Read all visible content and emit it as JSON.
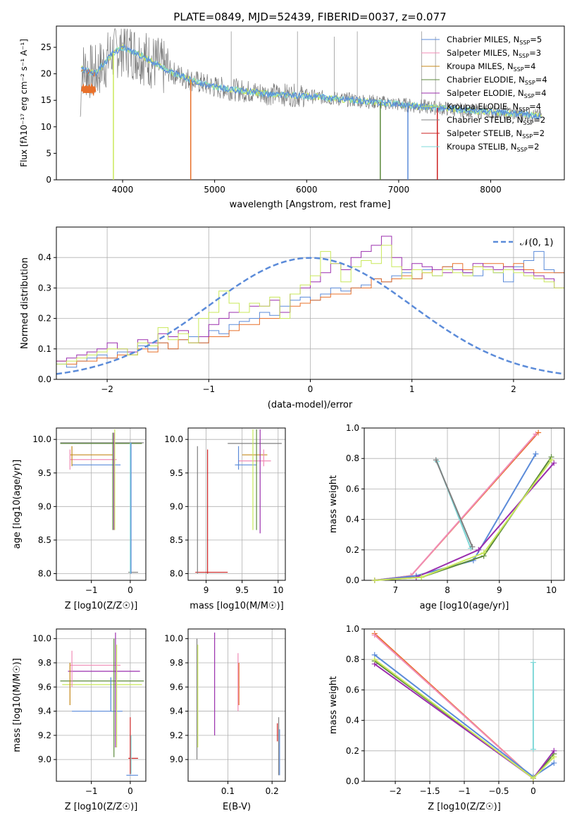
{
  "colors": {
    "c_miles": "#5b8bd9",
    "s_miles": "#f08cb7",
    "k_miles": "#c58a1b",
    "c_elodie": "#5c8a3c",
    "s_elodie": "#9b2fae",
    "k_elodie": "#c9e85a",
    "c_stelib": "#808080",
    "s_stelib": "#cc2222",
    "k_stelib": "#7fd8d8",
    "orange": "#e8702a",
    "gauss": "#5b8bd9",
    "grid": "#b0b0b0"
  },
  "chart_data": [
    {
      "type": "line",
      "title": "PLATE=0849, MJD=52439, FIBERID=0037, z=0.077",
      "xlabel": "wavelength [Angstrom, rest frame]",
      "ylabel": "Flux [fλ10⁻¹⁷ erg cm⁻² s⁻¹ A⁻¹]",
      "xlim": [
        3280,
        8800
      ],
      "ylim": [
        0,
        29
      ],
      "xticks": [
        4000,
        5000,
        6000,
        7000,
        8000
      ],
      "yticks": [
        0,
        5,
        10,
        15,
        20,
        25
      ],
      "grid": false,
      "legend_position": "top-right",
      "series": [
        {
          "name": "Chabrier MILES, N_SSP=5",
          "color": "#5b8bd9"
        },
        {
          "name": "Salpeter MILES, N_SSP=3",
          "color": "#f08cb7"
        },
        {
          "name": "Kroupa MILES, N_SSP=4",
          "color": "#c58a1b"
        },
        {
          "name": "Chabrier ELODIE, N_SSP=4",
          "color": "#5c8a3c"
        },
        {
          "name": "Salpeter ELODIE, N_SSP=4",
          "color": "#9b2fae"
        },
        {
          "name": "Kroupa ELODIE, N_SSP=4",
          "color": "#c9e85a"
        },
        {
          "name": "Chabrier STELIB, N_SSP=2",
          "color": "#808080"
        },
        {
          "name": "Salpeter STELIB, N_SSP=2",
          "color": "#cc2222"
        },
        {
          "name": "Kroupa STELIB, N_SSP=2",
          "color": "#7fd8d8"
        }
      ],
      "continuum": {
        "x": [
          3550,
          3700,
          3800,
          3900,
          4000,
          4200,
          4500,
          4800,
          5000,
          5300,
          5600,
          6000,
          6400,
          6800,
          7200,
          7600,
          8000,
          8400,
          8550
        ],
        "y": [
          21,
          20,
          22,
          24,
          25,
          23.5,
          20.5,
          18.5,
          17.5,
          16.8,
          16.2,
          15.8,
          15.2,
          14.6,
          13.9,
          13.3,
          12.8,
          12.3,
          12.0
        ]
      },
      "drops": [
        {
          "x": 3900,
          "color": "#c9e85a"
        },
        {
          "x": 4740,
          "color": "#e8702a"
        },
        {
          "x": 6800,
          "color": "#5c8a3c"
        },
        {
          "x": 7100,
          "color": "#5b8bd9"
        },
        {
          "x": 7420,
          "color": "#cc2222"
        }
      ],
      "spikes": [
        {
          "x": 5180,
          "y": 28
        },
        {
          "x": 5900,
          "y": 28
        },
        {
          "x": 6300,
          "y": 27
        },
        {
          "x": 6550,
          "y": 28
        },
        {
          "x": 7250,
          "y": 28
        },
        {
          "x": 7400,
          "y": 27
        }
      ]
    },
    {
      "type": "line",
      "xlabel": "(data-model)/error",
      "ylabel": "Normed distribution",
      "xlim": [
        -2.5,
        2.5
      ],
      "ylim": [
        0,
        0.5
      ],
      "xticks": [
        -2,
        -1,
        0,
        1,
        2
      ],
      "yticks": [
        0.0,
        0.1,
        0.2,
        0.3,
        0.4
      ],
      "grid": true,
      "legend_position": "top-right",
      "gaussian_label": "𝒩(0, 1)",
      "bin_width": 0.1,
      "x_start": -2.5,
      "series": [
        {
          "color": "#5b8bd9",
          "values": [
            0.05,
            0.04,
            0.06,
            0.07,
            0.08,
            0.07,
            0.09,
            0.08,
            0.11,
            0.1,
            0.12,
            0.1,
            0.13,
            0.14,
            0.12,
            0.16,
            0.15,
            0.18,
            0.19,
            0.2,
            0.22,
            0.21,
            0.24,
            0.26,
            0.27,
            0.26,
            0.28,
            0.3,
            0.29,
            0.3,
            0.31,
            0.33,
            0.32,
            0.34,
            0.35,
            0.33,
            0.36,
            0.34,
            0.37,
            0.36,
            0.35,
            0.34,
            0.36,
            0.35,
            0.32,
            0.37,
            0.39,
            0.42,
            0.36,
            0.35,
            0.34,
            0.33,
            0.31,
            0.32,
            0.3,
            0.28,
            0.26,
            0.25,
            0.22,
            0.2,
            0.2,
            0.17,
            0.16,
            0.15,
            0.14,
            0.12,
            0.12,
            0.11,
            0.1,
            0.1,
            0.09,
            0.09,
            0.1,
            0.08,
            0.09,
            0.06,
            0.08,
            0.07,
            0.06,
            0.05,
            0.05,
            0.05,
            0.04,
            0.04,
            0.04,
            0.04,
            0.05,
            0.04,
            0.04,
            0.04,
            0.04,
            0.04,
            0.04,
            0.04,
            0.04,
            0.04,
            0.04,
            0.04,
            0.04,
            0.04
          ]
        },
        {
          "color": "#e8702a",
          "values": [
            0.06,
            0.05,
            0.06,
            0.06,
            0.07,
            0.07,
            0.08,
            0.08,
            0.1,
            0.09,
            0.12,
            0.1,
            0.13,
            0.12,
            0.12,
            0.14,
            0.14,
            0.16,
            0.18,
            0.18,
            0.2,
            0.2,
            0.22,
            0.24,
            0.25,
            0.26,
            0.27,
            0.28,
            0.28,
            0.3,
            0.3,
            0.33,
            0.32,
            0.33,
            0.34,
            0.33,
            0.35,
            0.36,
            0.37,
            0.38,
            0.36,
            0.37,
            0.38,
            0.38,
            0.37,
            0.38,
            0.36,
            0.35,
            0.35,
            0.35,
            0.37,
            0.38,
            0.36,
            0.35,
            0.34,
            0.33,
            0.32,
            0.3,
            0.28,
            0.27,
            0.26,
            0.25,
            0.24,
            0.22,
            0.2,
            0.18,
            0.17,
            0.15,
            0.14,
            0.13,
            0.12,
            0.12,
            0.1,
            0.1,
            0.09,
            0.08,
            0.08,
            0.08,
            0.07,
            0.06,
            0.06,
            0.06,
            0.06,
            0.05,
            0.05,
            0.05,
            0.05,
            0.05,
            0.05,
            0.05,
            0.05,
            0.05,
            0.05,
            0.05,
            0.05,
            0.05,
            0.05,
            0.05,
            0.05,
            0.05
          ]
        },
        {
          "color": "#9b2fae",
          "values": [
            0.06,
            0.07,
            0.08,
            0.09,
            0.1,
            0.12,
            0.1,
            0.09,
            0.13,
            0.12,
            0.15,
            0.14,
            0.16,
            0.12,
            0.14,
            0.18,
            0.2,
            0.22,
            0.22,
            0.24,
            0.24,
            0.26,
            0.22,
            0.28,
            0.3,
            0.32,
            0.35,
            0.38,
            0.36,
            0.4,
            0.42,
            0.44,
            0.47,
            0.4,
            0.36,
            0.38,
            0.37,
            0.36,
            0.35,
            0.36,
            0.35,
            0.38,
            0.37,
            0.36,
            0.37,
            0.36,
            0.35,
            0.34,
            0.33,
            0.3,
            0.29,
            0.28,
            0.26,
            0.24,
            0.21,
            0.2,
            0.18,
            0.17,
            0.16,
            0.15,
            0.17,
            0.16,
            0.15,
            0.14,
            0.13,
            0.12,
            0.11,
            0.1,
            0.09,
            0.08,
            0.08,
            0.07,
            0.07,
            0.06,
            0.06,
            0.06,
            0.05,
            0.05,
            0.05,
            0.05,
            0.05,
            0.05,
            0.05,
            0.05,
            0.05,
            0.05,
            0.05,
            0.05,
            0.05,
            0.05,
            0.05,
            0.05,
            0.05,
            0.05,
            0.05,
            0.05,
            0.05,
            0.05,
            0.05,
            0.05
          ]
        },
        {
          "color": "#c9e85a",
          "values": [
            0.05,
            0.06,
            0.07,
            0.08,
            0.09,
            0.1,
            0.1,
            0.08,
            0.12,
            0.11,
            0.17,
            0.13,
            0.15,
            0.12,
            0.2,
            0.22,
            0.29,
            0.25,
            0.22,
            0.25,
            0.24,
            0.27,
            0.2,
            0.28,
            0.31,
            0.34,
            0.42,
            0.38,
            0.32,
            0.37,
            0.39,
            0.38,
            0.44,
            0.37,
            0.33,
            0.36,
            0.35,
            0.34,
            0.36,
            0.35,
            0.34,
            0.37,
            0.36,
            0.35,
            0.36,
            0.35,
            0.34,
            0.33,
            0.32,
            0.3,
            0.28,
            0.27,
            0.25,
            0.23,
            0.17,
            0.18,
            0.16,
            0.15,
            0.14,
            0.15,
            0.17,
            0.16,
            0.14,
            0.13,
            0.12,
            0.11,
            0.1,
            0.09,
            0.08,
            0.07,
            0.07,
            0.07,
            0.06,
            0.06,
            0.05,
            0.05,
            0.05,
            0.05,
            0.05,
            0.05,
            0.05,
            0.05,
            0.05,
            0.05,
            0.05,
            0.05,
            0.05,
            0.05,
            0.05,
            0.05,
            0.05,
            0.05,
            0.05,
            0.05,
            0.05,
            0.05,
            0.05,
            0.05,
            0.05,
            0.05
          ]
        }
      ]
    },
    {
      "type": "scatter",
      "xlabel": "Z [log10(Z/Z☉)]",
      "ylabel": "age  [log10(age/yr)]",
      "xlim": [
        -1.9,
        0.4
      ],
      "ylim": [
        7.9,
        10.17
      ],
      "xticks": [
        -1,
        0
      ],
      "yticks": [
        8.0,
        8.5,
        9.0,
        9.5,
        10.0
      ],
      "grid": true
    },
    {
      "type": "scatter",
      "xlabel": "mass [log10(M/M☉)]",
      "xlim": [
        8.75,
        10.1
      ],
      "ylim": [
        7.9,
        10.17
      ],
      "xticks": [
        9.0,
        9.5,
        10.0
      ],
      "yticks": [
        8.0,
        8.5,
        9.0,
        9.5,
        10.0
      ],
      "grid": true
    },
    {
      "type": "line",
      "xlabel": "age  [log10(age/yr)]",
      "ylabel": "mass weight",
      "xlim": [
        6.4,
        10.25
      ],
      "ylim": [
        0,
        1.0
      ],
      "xticks": [
        7,
        8,
        9,
        10
      ],
      "yticks": [
        0.0,
        0.2,
        0.4,
        0.6,
        0.8,
        1.0
      ],
      "grid": true,
      "series": [
        {
          "color": "#e8702a",
          "x": [
            6.6,
            7.3,
            9.75
          ],
          "y": [
            0.0,
            0.03,
            0.97
          ]
        },
        {
          "color": "#f08cb7",
          "x": [
            6.6,
            7.3,
            9.7
          ],
          "y": [
            0.0,
            0.03,
            0.96
          ]
        },
        {
          "color": "#5b8bd9",
          "x": [
            6.6,
            7.4,
            8.5,
            9.7
          ],
          "y": [
            0.0,
            0.03,
            0.13,
            0.83
          ]
        },
        {
          "color": "#5c8a3c",
          "x": [
            6.6,
            7.5,
            8.7,
            10.0
          ],
          "y": [
            0.0,
            0.02,
            0.16,
            0.81
          ]
        },
        {
          "color": "#9b2fae",
          "x": [
            6.6,
            7.4,
            8.6,
            10.05
          ],
          "y": [
            0.0,
            0.02,
            0.2,
            0.77
          ]
        },
        {
          "color": "#c9e85a",
          "x": [
            6.6,
            7.5,
            8.7,
            10.0
          ],
          "y": [
            0.0,
            0.02,
            0.18,
            0.79
          ]
        },
        {
          "color": "#7fd8d8",
          "x": [
            7.8,
            8.45
          ],
          "y": [
            0.78,
            0.21
          ]
        },
        {
          "color": "#808080",
          "x": [
            7.78,
            8.48
          ],
          "y": [
            0.79,
            0.22
          ]
        }
      ]
    },
    {
      "type": "scatter",
      "xlabel": "Z [log10(Z/Z☉)]",
      "ylabel": "mass [log10(M/M☉)]",
      "xlim": [
        -1.9,
        0.4
      ],
      "ylim": [
        8.82,
        10.08
      ],
      "xticks": [
        -1,
        0
      ],
      "yticks": [
        9.0,
        9.2,
        9.4,
        9.6,
        9.8,
        10.0
      ],
      "grid": true
    },
    {
      "type": "scatter",
      "xlabel": "E(B-V)",
      "xlim": [
        0.01,
        0.23
      ],
      "ylim": [
        8.82,
        10.08
      ],
      "xticks": [
        0.1,
        0.2
      ],
      "yticks": [
        9.0,
        9.2,
        9.4,
        9.6,
        9.8,
        10.0
      ],
      "grid": true
    },
    {
      "type": "line",
      "xlabel": "Z [log10(Z/Z☉)]",
      "ylabel": "mass weight",
      "xlim": [
        -2.45,
        0.45
      ],
      "ylim": [
        0,
        1.0
      ],
      "xticks": [
        -2.0,
        -1.5,
        -1.0,
        -0.5,
        0.0
      ],
      "yticks": [
        0.0,
        0.2,
        0.4,
        0.6,
        0.8,
        1.0
      ],
      "grid": true,
      "series": [
        {
          "color": "#e8702a",
          "x": [
            -2.3,
            0.0
          ],
          "y": [
            0.97,
            0.02
          ]
        },
        {
          "color": "#f08cb7",
          "x": [
            -2.3,
            0.0
          ],
          "y": [
            0.96,
            0.02
          ]
        },
        {
          "color": "#5b8bd9",
          "x": [
            -2.3,
            0.0,
            0.3
          ],
          "y": [
            0.83,
            0.03,
            0.12
          ]
        },
        {
          "color": "#5c8a3c",
          "x": [
            -2.3,
            0.0,
            0.3
          ],
          "y": [
            0.79,
            0.02,
            0.18
          ]
        },
        {
          "color": "#9b2fae",
          "x": [
            -2.3,
            0.0,
            0.3
          ],
          "y": [
            0.77,
            0.02,
            0.2
          ]
        },
        {
          "color": "#c9e85a",
          "x": [
            -2.3,
            0.0,
            0.3
          ],
          "y": [
            0.8,
            0.02,
            0.16
          ]
        },
        {
          "color": "#7fd8d8",
          "x": [
            0.0,
            0.0
          ],
          "y": [
            0.78,
            0.21
          ]
        }
      ]
    }
  ]
}
